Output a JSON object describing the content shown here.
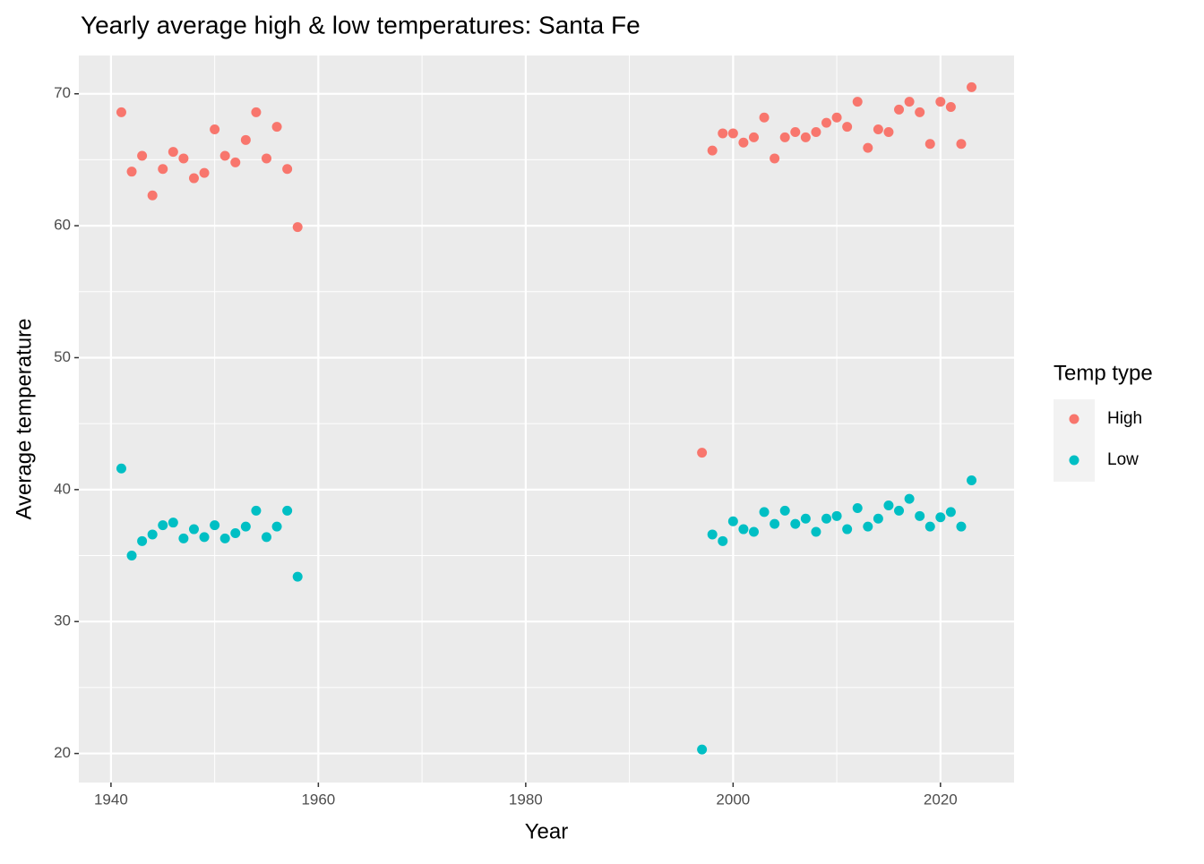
{
  "chart_data": {
    "type": "scatter",
    "title": "Yearly average high & low temperatures: Santa Fe",
    "x_label": "Year",
    "y_label": "Average temperature",
    "legend_title": "Temp type",
    "legend_position": "right",
    "grid": true,
    "x": [
      1941,
      1942,
      1943,
      1944,
      1945,
      1946,
      1947,
      1948,
      1949,
      1950,
      1951,
      1952,
      1953,
      1954,
      1955,
      1956,
      1957,
      1958,
      1997,
      1998,
      1999,
      2000,
      2001,
      2002,
      2003,
      2004,
      2005,
      2006,
      2007,
      2008,
      2009,
      2010,
      2011,
      2012,
      2013,
      2014,
      2015,
      2016,
      2017,
      2018,
      2019,
      2020,
      2021,
      2022,
      2023
    ],
    "series": [
      {
        "name": "High",
        "color": "#F8766D",
        "values": [
          68.6,
          64.1,
          65.3,
          62.3,
          64.3,
          65.6,
          65.1,
          63.6,
          64.0,
          67.3,
          65.3,
          64.8,
          66.5,
          68.6,
          65.1,
          67.5,
          64.3,
          59.9,
          42.8,
          65.7,
          67.0,
          67.0,
          66.3,
          66.7,
          68.2,
          65.1,
          66.7,
          67.1,
          66.7,
          67.1,
          67.8,
          68.2,
          67.5,
          69.4,
          65.9,
          67.3,
          67.1,
          68.8,
          69.4,
          68.6,
          66.2,
          69.4,
          69.0,
          66.2,
          70.5
        ]
      },
      {
        "name": "Low",
        "color": "#00BFC4",
        "values": [
          41.6,
          35.0,
          36.1,
          36.6,
          37.3,
          37.5,
          36.3,
          37.0,
          36.4,
          37.3,
          36.3,
          36.7,
          37.2,
          38.4,
          36.4,
          37.2,
          38.4,
          33.4,
          20.3,
          36.6,
          36.1,
          37.6,
          37.0,
          36.8,
          38.3,
          37.4,
          38.4,
          37.4,
          37.8,
          36.8,
          37.8,
          38.0,
          37.0,
          38.6,
          37.2,
          37.8,
          38.8,
          38.4,
          39.3,
          38.0,
          37.2,
          37.9,
          38.3,
          37.2,
          40.7
        ]
      }
    ],
    "xlim": [
      1936.9,
      2027.1
    ],
    "xticks": [
      1940,
      1960,
      1980,
      2000,
      2020
    ],
    "ylim": [
      17.8,
      72.9
    ],
    "yticks": [
      20,
      30,
      40,
      50,
      60,
      70
    ]
  }
}
